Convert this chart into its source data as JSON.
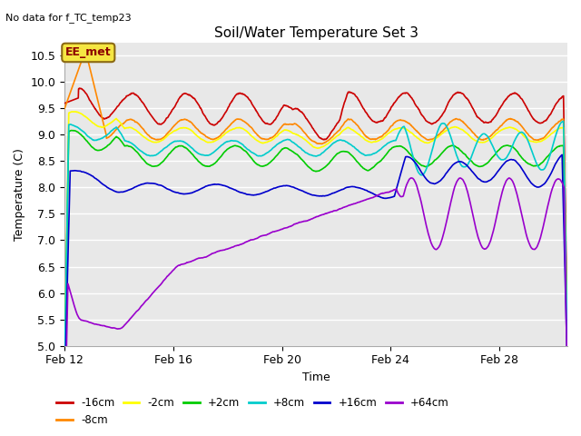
{
  "title": "Soil/Water Temperature Set 3",
  "subtitle": "No data for f_TC_temp23",
  "xlabel": "Time",
  "ylabel": "Temperature (C)",
  "ylim": [
    5.0,
    10.75
  ],
  "yticks": [
    5.0,
    5.5,
    6.0,
    6.5,
    7.0,
    7.5,
    8.0,
    8.5,
    9.0,
    9.5,
    10.0,
    10.5
  ],
  "xlim_days": [
    0,
    18.5
  ],
  "xtick_positions": [
    0,
    4,
    8,
    12,
    16
  ],
  "xtick_labels": [
    "Feb 12",
    "Feb 16",
    "Feb 20",
    "Feb 24",
    "Feb 28"
  ],
  "annotation_text": "EE_met",
  "series_colors": {
    "-16cm": "#cc0000",
    "-8cm": "#ff8800",
    "-2cm": "#ffff00",
    "+2cm": "#00cc00",
    "+8cm": "#00cccc",
    "+16cm": "#0000cc",
    "+64cm": "#9900cc"
  },
  "legend_order": [
    "-16cm",
    "-8cm",
    "-2cm",
    "+2cm",
    "+8cm",
    "+16cm",
    "+64cm"
  ],
  "background_color": "#e8e8e8",
  "plot_bg_color": "#e8e8e8",
  "grid_color": "#ffffff"
}
